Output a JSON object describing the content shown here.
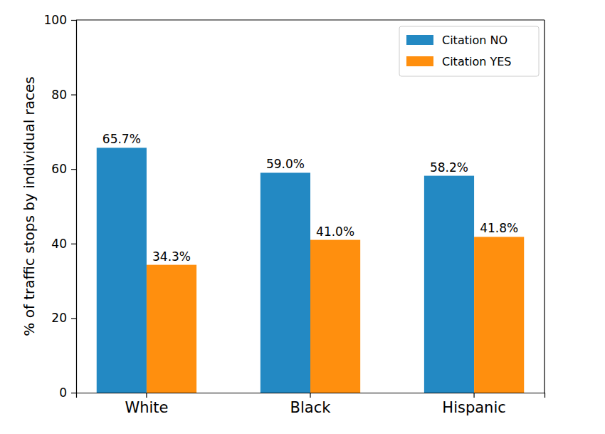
{
  "chart_data": {
    "type": "bar",
    "y_label": "% of traffic stops by individual races",
    "categories": [
      "White",
      "Black",
      "Hispanic"
    ],
    "series": [
      {
        "name": "Citation NO",
        "color": "#2389c3",
        "values": [
          65.7,
          59.0,
          58.2
        ],
        "value_labels": [
          "65.7%",
          "59.0%",
          "58.2%"
        ]
      },
      {
        "name": "Citation YES",
        "color": "#ff8f0e",
        "values": [
          34.3,
          41.0,
          41.8
        ],
        "value_labels": [
          "34.3%",
          "41.0%",
          "41.8%"
        ]
      }
    ],
    "ylim": [
      0,
      100
    ],
    "yticks": [
      0,
      20,
      40,
      60,
      80,
      100
    ],
    "grid": false,
    "legend": "upper right",
    "data_labels": true
  }
}
